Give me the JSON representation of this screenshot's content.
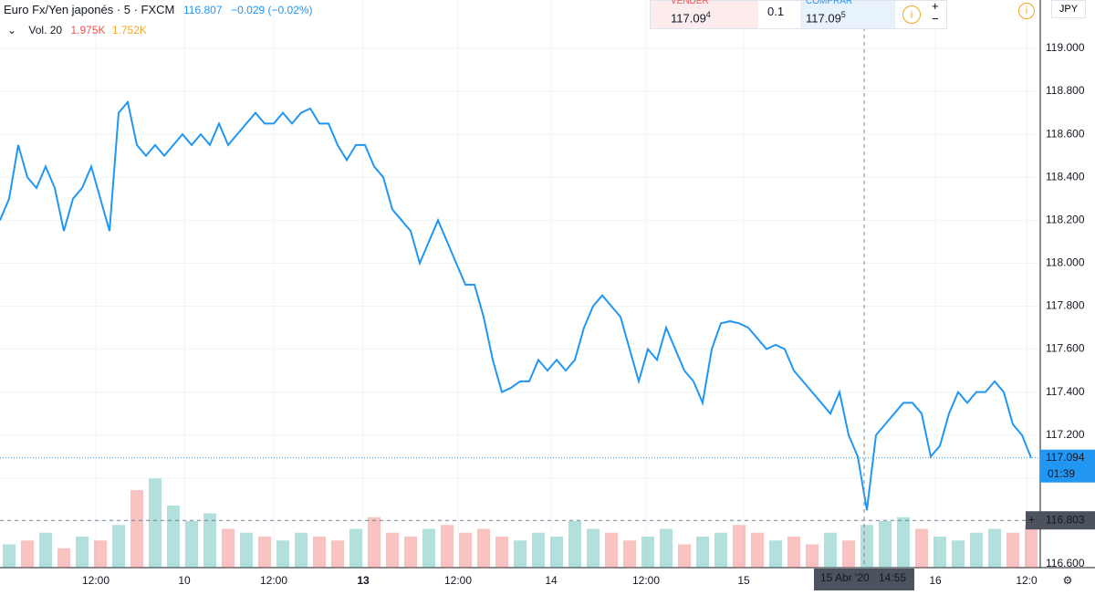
{
  "chart_data": {
    "type": "line",
    "header": {
      "symbol": "Euro Fx/Yen japonés · 5 · FXCM",
      "last": 116.807,
      "change": "−0.029 (−0.02%)",
      "vol_label": "Vol. 20",
      "vol_a": "1.975K",
      "vol_b": "1.752K"
    },
    "order": {
      "sell_label": "VENDER",
      "sell_price": 117.09,
      "sell_pip": 4,
      "size": 0.1,
      "buy_label": "COMPRAR",
      "buy_price": 117.09,
      "buy_pip": 5
    },
    "currency": "JPY",
    "xlim": [
      0,
      114
    ],
    "xticks": [
      {
        "value": 10.5,
        "label": "12:00"
      },
      {
        "value": 20.2,
        "label": "10"
      },
      {
        "value": 30,
        "label": "12:00"
      },
      {
        "value": 39.8,
        "label": "13"
      },
      {
        "value": 50.2,
        "label": "12:00"
      },
      {
        "value": 60.4,
        "label": "14"
      },
      {
        "value": 70.8,
        "label": "12:00"
      },
      {
        "value": 81.5,
        "label": "15"
      },
      {
        "value": 102.5,
        "label": "16"
      },
      {
        "value": 112.5,
        "label": "12:0"
      }
    ],
    "ylim": [
      116.583,
      119.225
    ],
    "yticks": [
      {
        "value": 116.6,
        "label": "116.600"
      },
      {
        "value": 116.8,
        "label": "116.800"
      },
      {
        "value": 117.0,
        "label": "117.000"
      },
      {
        "value": 117.2,
        "label": "117.200"
      },
      {
        "value": 117.4,
        "label": "117.400"
      },
      {
        "value": 117.6,
        "label": "117.600"
      },
      {
        "value": 117.8,
        "label": "117.800"
      },
      {
        "value": 118.0,
        "label": "118.000"
      },
      {
        "value": 118.2,
        "label": "118.200"
      },
      {
        "value": 118.4,
        "label": "118.400"
      },
      {
        "value": 118.6,
        "label": "118.600"
      },
      {
        "value": 118.8,
        "label": "118.800"
      },
      {
        "value": 119.0,
        "label": "119.000"
      }
    ],
    "grid": true,
    "series": [
      {
        "name": "Euro Fx/Yen japonés",
        "color": "#2196f3",
        "values": [
          118.2,
          118.3,
          118.55,
          118.4,
          118.35,
          118.45,
          118.35,
          118.15,
          118.3,
          118.35,
          118.45,
          118.3,
          118.15,
          118.7,
          118.75,
          118.55,
          118.5,
          118.55,
          118.5,
          118.55,
          118.6,
          118.55,
          118.6,
          118.55,
          118.65,
          118.55,
          118.6,
          118.65,
          118.7,
          118.65,
          118.65,
          118.7,
          118.65,
          118.7,
          118.72,
          118.65,
          118.65,
          118.55,
          118.48,
          118.55,
          118.55,
          118.45,
          118.4,
          118.25,
          118.2,
          118.15,
          118.0,
          118.1,
          118.2,
          118.1,
          118.0,
          117.9,
          117.9,
          117.75,
          117.55,
          117.4,
          117.42,
          117.45,
          117.45,
          117.55,
          117.5,
          117.55,
          117.5,
          117.55,
          117.7,
          117.8,
          117.85,
          117.8,
          117.75,
          117.6,
          117.45,
          117.6,
          117.55,
          117.7,
          117.6,
          117.5,
          117.45,
          117.35,
          117.6,
          117.72,
          117.73,
          117.72,
          117.7,
          117.65,
          117.6,
          117.62,
          117.6,
          117.5,
          117.45,
          117.4,
          117.35,
          117.3,
          117.4,
          117.2,
          117.1,
          116.85,
          117.2,
          117.25,
          117.3,
          117.35,
          117.35,
          117.3,
          117.1,
          117.15,
          117.3,
          117.4,
          117.35,
          117.4,
          117.4,
          117.45,
          117.4,
          117.25,
          117.2,
          117.094
        ]
      },
      {
        "name": "Vol. 20",
        "up_color": "#26a69a",
        "down_color": "#ef5350",
        "vol_ylim": [
          0,
          4000
        ],
        "values": [
          600,
          700,
          900,
          500,
          800,
          700,
          1100,
          2000,
          2300,
          1600,
          1200,
          1400,
          1000,
          900,
          800,
          700,
          900,
          800,
          700,
          1000,
          1300,
          900,
          800,
          1000,
          1100,
          900,
          1000,
          800,
          700,
          900,
          800,
          1200,
          1000,
          900,
          700,
          800,
          1000,
          600,
          800,
          900,
          1100,
          900,
          700,
          800,
          600,
          900,
          700,
          1100,
          1200,
          1300,
          1000,
          800,
          700,
          900,
          1000,
          900,
          1100
        ]
      }
    ],
    "last_price": {
      "value": 117.094,
      "countdown": "01:39"
    },
    "crosshair": {
      "x": 94.7,
      "date": "15 Abr '20",
      "time": "14:55",
      "price": 116.803
    }
  }
}
